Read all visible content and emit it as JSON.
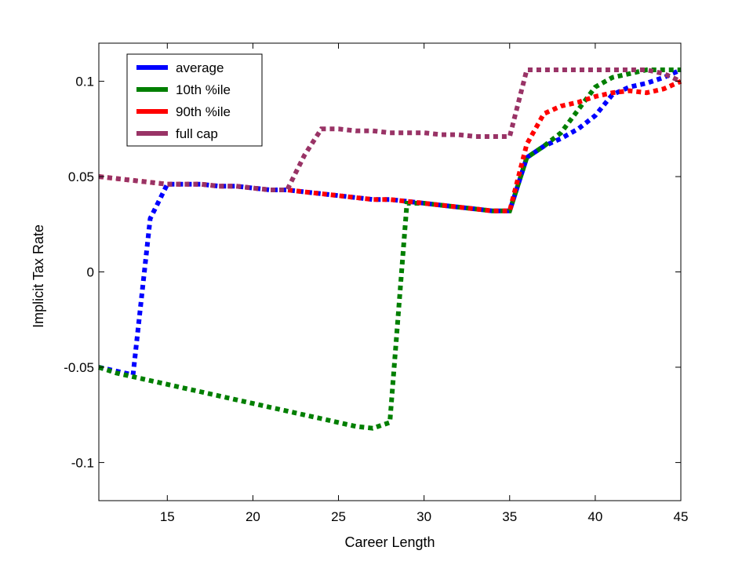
{
  "chart_data": {
    "type": "line",
    "xlabel": "Career Length",
    "ylabel": "Implicit Tax Rate",
    "xlim": [
      11,
      45
    ],
    "ylim": [
      -0.12,
      0.12
    ],
    "xticks": [
      15,
      20,
      25,
      30,
      35,
      40,
      45
    ],
    "xtick_labels": [
      "15",
      "20",
      "25",
      "30",
      "35",
      "40",
      "45"
    ],
    "yticks": [
      -0.1,
      -0.05,
      0,
      0.05,
      0.1
    ],
    "ytick_labels": [
      "-0.1",
      "-0.05",
      "0",
      "0.05",
      "0.1"
    ],
    "grid": false,
    "legend_position": "top-left",
    "series": [
      {
        "name": "average",
        "color": "#0000ff",
        "x": [
          11,
          12,
          13,
          14,
          15,
          16,
          17,
          18,
          19,
          20,
          21,
          22,
          23,
          24,
          25,
          26,
          27,
          28,
          29,
          30,
          31,
          32,
          33,
          34,
          35,
          36,
          37,
          38,
          39,
          40,
          41,
          42,
          43,
          44,
          45
        ],
        "y": [
          -0.05,
          -0.052,
          -0.054,
          0.028,
          0.046,
          0.046,
          0.046,
          0.045,
          0.045,
          0.044,
          0.043,
          0.043,
          0.042,
          0.041,
          0.04,
          0.039,
          0.038,
          0.038,
          0.037,
          0.036,
          0.035,
          0.034,
          0.033,
          0.032,
          0.032,
          0.06,
          0.066,
          0.07,
          0.075,
          0.082,
          0.093,
          0.097,
          0.099,
          0.102,
          0.106
        ]
      },
      {
        "name": "10th %ile",
        "color": "#007f00",
        "x": [
          11,
          12,
          13,
          14,
          15,
          16,
          17,
          18,
          19,
          20,
          21,
          22,
          23,
          24,
          25,
          26,
          27,
          28,
          29,
          30,
          31,
          32,
          33,
          34,
          35,
          36,
          37,
          38,
          39,
          40,
          41,
          42,
          43,
          44,
          45
        ],
        "y": [
          -0.05,
          -0.053,
          -0.055,
          -0.057,
          -0.059,
          -0.061,
          -0.063,
          -0.065,
          -0.067,
          -0.069,
          -0.071,
          -0.073,
          -0.075,
          -0.077,
          -0.079,
          -0.081,
          -0.082,
          -0.079,
          0.036,
          0.036,
          0.035,
          0.034,
          0.033,
          0.032,
          0.032,
          0.06,
          0.066,
          0.073,
          0.085,
          0.097,
          0.102,
          0.104,
          0.106,
          0.106,
          0.106
        ]
      },
      {
        "name": "90th %ile",
        "color": "#ff0000",
        "x": [
          11,
          12,
          13,
          14,
          15,
          16,
          17,
          18,
          19,
          20,
          21,
          22,
          23,
          24,
          25,
          26,
          27,
          28,
          29,
          30,
          31,
          32,
          33,
          34,
          35,
          36,
          37,
          38,
          39,
          40,
          41,
          42,
          43,
          44,
          45
        ],
        "y": [
          0.05,
          0.049,
          0.048,
          0.047,
          0.046,
          0.046,
          0.046,
          0.045,
          0.045,
          0.044,
          0.043,
          0.043,
          0.042,
          0.041,
          0.04,
          0.039,
          0.038,
          0.038,
          0.037,
          0.036,
          0.035,
          0.034,
          0.033,
          0.032,
          0.032,
          0.067,
          0.083,
          0.087,
          0.089,
          0.092,
          0.094,
          0.095,
          0.094,
          0.096,
          0.1
        ]
      },
      {
        "name": "full cap",
        "color": "#993366",
        "x": [
          11,
          12,
          13,
          14,
          15,
          16,
          17,
          18,
          19,
          20,
          21,
          22,
          23,
          24,
          25,
          26,
          27,
          28,
          29,
          30,
          31,
          32,
          33,
          34,
          35,
          36,
          37,
          38,
          39,
          40,
          41,
          42,
          43,
          44,
          45
        ],
        "y": [
          0.05,
          0.049,
          0.048,
          0.047,
          0.046,
          0.046,
          0.046,
          0.045,
          0.045,
          0.044,
          0.043,
          0.043,
          0.061,
          0.075,
          0.075,
          0.074,
          0.074,
          0.073,
          0.073,
          0.073,
          0.072,
          0.072,
          0.071,
          0.071,
          0.071,
          0.106,
          0.106,
          0.106,
          0.106,
          0.106,
          0.106,
          0.106,
          0.106,
          0.104,
          0.1
        ]
      }
    ]
  }
}
